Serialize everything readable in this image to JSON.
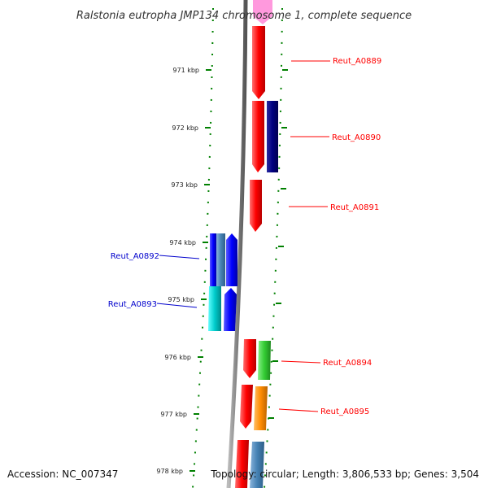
{
  "title": "Ralstonia eutropha JMP134 chromosome 1, complete sequence",
  "footer": {
    "accession": "Accession: NC_007347",
    "topology": "Topology: circular; Length: 3,806,533 bp; Genes: 3,504"
  },
  "ticks": [
    "971 kbp",
    "972 kbp",
    "973 kbp",
    "974 kbp",
    "975 kbp",
    "976 kbp",
    "977 kbp",
    "978 kbp"
  ],
  "genes": [
    {
      "label": "Reut_A0889",
      "strand": "forward",
      "color": "#ff0000"
    },
    {
      "label": "Reut_A0890",
      "strand": "forward",
      "color": "#ff0000"
    },
    {
      "label": "Reut_A0891",
      "strand": "forward",
      "color": "#ff0000"
    },
    {
      "label": "Reut_A0892",
      "strand": "reverse",
      "color": "#0000ff"
    },
    {
      "label": "Reut_A0893",
      "strand": "reverse",
      "color": "#0000ff"
    },
    {
      "label": "Reut_A0894",
      "strand": "forward",
      "color": "#ff0000"
    },
    {
      "label": "Reut_A0895",
      "strand": "forward",
      "color": "#ff0000"
    }
  ],
  "colors": {
    "forward_label": "#ff0000",
    "reverse_label": "#0000cc",
    "backbone": "#808080",
    "tick": "#008000",
    "cds_forward": "#ff0000",
    "cds_reverse": "#0000ff",
    "orf_navy": "#000080",
    "orf_steelblue": "#4682b4",
    "orf_cyan": "#00cccc",
    "orf_green": "#33cc33",
    "orf_orange": "#ff8c00",
    "pink": "#ff99dd"
  }
}
